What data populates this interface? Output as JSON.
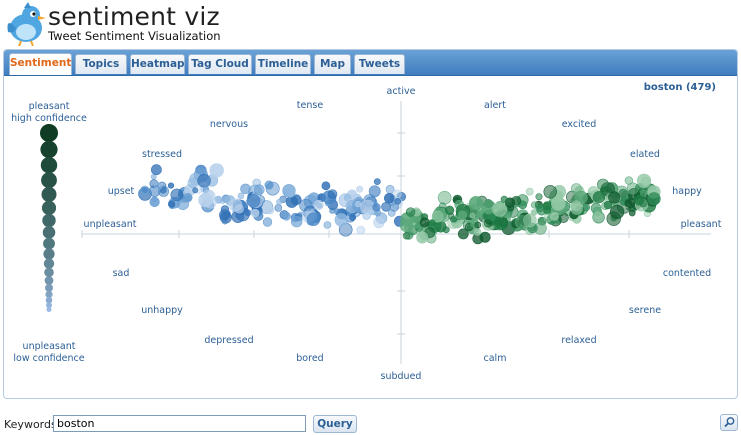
{
  "app": {
    "title": "sentiment viz",
    "subtitle": "Tweet Sentiment Visualization"
  },
  "tabs": [
    {
      "label": "Sentiment",
      "active": true
    },
    {
      "label": "Topics",
      "active": false
    },
    {
      "label": "Heatmap",
      "active": false
    },
    {
      "label": "Tag Cloud",
      "active": false
    },
    {
      "label": "Timeline",
      "active": false
    },
    {
      "label": "Map",
      "active": false
    },
    {
      "label": "Tweets",
      "active": false
    }
  ],
  "query_summary": "boston (479)",
  "legend": {
    "top_label_1": "pleasant",
    "top_label_2": "high confidence",
    "bottom_label_1": "unpleasant",
    "bottom_label_2": "low confidence"
  },
  "emotion_labels": {
    "active": "active",
    "subdued": "subdued",
    "tense": "tense",
    "alert": "alert",
    "nervous": "nervous",
    "excited": "excited",
    "stressed": "stressed",
    "elated": "elated",
    "upset": "upset",
    "happy": "happy",
    "unpleasant": "unpleasant",
    "pleasant": "pleasant",
    "sad": "sad",
    "contented": "contented",
    "unhappy": "unhappy",
    "serene": "serene",
    "depressed": "depressed",
    "relaxed": "relaxed",
    "bored": "bored",
    "calm": "calm"
  },
  "search": {
    "label": "Keywords:",
    "value": "boston",
    "button": "Query"
  },
  "colors": {
    "unpleasant": "#5b93c9",
    "pleasant": "#2e8b57",
    "label": "#2c5f95",
    "active_tab": "#e06818",
    "tabbar": "#4f8ccb"
  },
  "icons": {
    "logo": "bluebird-logo",
    "zoom": "magnifier-icon"
  }
}
